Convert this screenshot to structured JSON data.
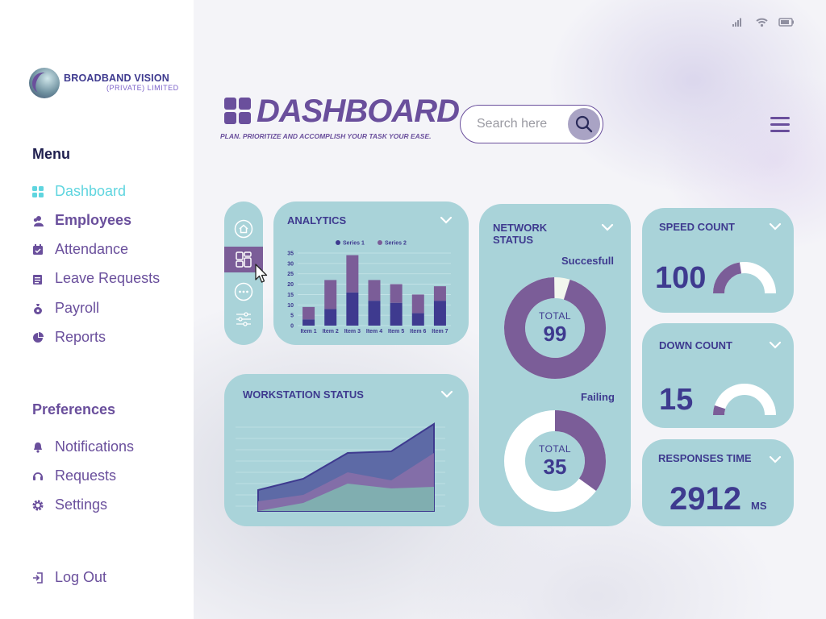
{
  "brand": {
    "name": "BROADBAND VISION",
    "sub": "(PRIVATE) LIMITED"
  },
  "menu": {
    "title": "Menu",
    "items": [
      {
        "label": "Dashboard",
        "icon": "grid-icon"
      },
      {
        "label": "Employees",
        "icon": "users-icon"
      },
      {
        "label": "Attendance",
        "icon": "calendar-icon"
      },
      {
        "label": "Leave Requests",
        "icon": "clipboard-icon"
      },
      {
        "label": "Payroll",
        "icon": "money-bag-icon"
      },
      {
        "label": "Reports",
        "icon": "pie-chart-icon"
      }
    ]
  },
  "preferences": {
    "title": "Preferences",
    "items": [
      {
        "label": "Notifications",
        "icon": "bell-icon"
      },
      {
        "label": "Requests",
        "icon": "headset-icon"
      },
      {
        "label": "Settings",
        "icon": "gear-icon"
      }
    ]
  },
  "logout": {
    "label": "Log Out",
    "icon": "logout-icon"
  },
  "header": {
    "title": "DASHBOARD",
    "subtitle": "PLAN. PRIORITIZE AND ACCOMPLISH YOUR TASK YOUR EASE."
  },
  "search": {
    "placeholder": "Search here"
  },
  "analytics": {
    "title": "ANALYTICS",
    "chart_data": {
      "type": "bar",
      "stacked": true,
      "categories": [
        "Item 1",
        "Item 2",
        "Item 3",
        "Item 4",
        "Item 5",
        "Item 6",
        "Item 7"
      ],
      "series": [
        {
          "name": "Series 1",
          "values": [
            3,
            8,
            16,
            12,
            11,
            6,
            12
          ],
          "color": "#3e3a8f"
        },
        {
          "name": "Series 2",
          "values": [
            6,
            14,
            18,
            10,
            9,
            9,
            7
          ],
          "color": "#7b5d98"
        }
      ],
      "ylim": [
        0,
        35
      ],
      "yticks": [
        0,
        5,
        10,
        15,
        20,
        25,
        30,
        35
      ],
      "legend": "top",
      "grid": true
    }
  },
  "workstation": {
    "title": "WORKSTATION STATUS"
  },
  "network": {
    "title_line1": "NETWORK",
    "title_line2": "STATUS",
    "successful": {
      "label": "Succesfull",
      "total_label": "TOTAL",
      "total": "99",
      "fraction": 0.95
    },
    "failing": {
      "label": "Failing",
      "total_label": "TOTAL",
      "total": "35",
      "fraction": 0.35
    }
  },
  "speed": {
    "title": "SPEED COUNT",
    "value": "100",
    "fraction": 0.45
  },
  "down": {
    "title": "DOWN COUNT",
    "value": "15",
    "fraction": 0.1
  },
  "response": {
    "title": "RESPONSES TIME",
    "value": "2912",
    "unit": "MS"
  },
  "colors": {
    "primary": "#6a4f9c",
    "navy": "#3e3a8f",
    "card": "#a9d3d9",
    "active": "#5fd5df"
  }
}
